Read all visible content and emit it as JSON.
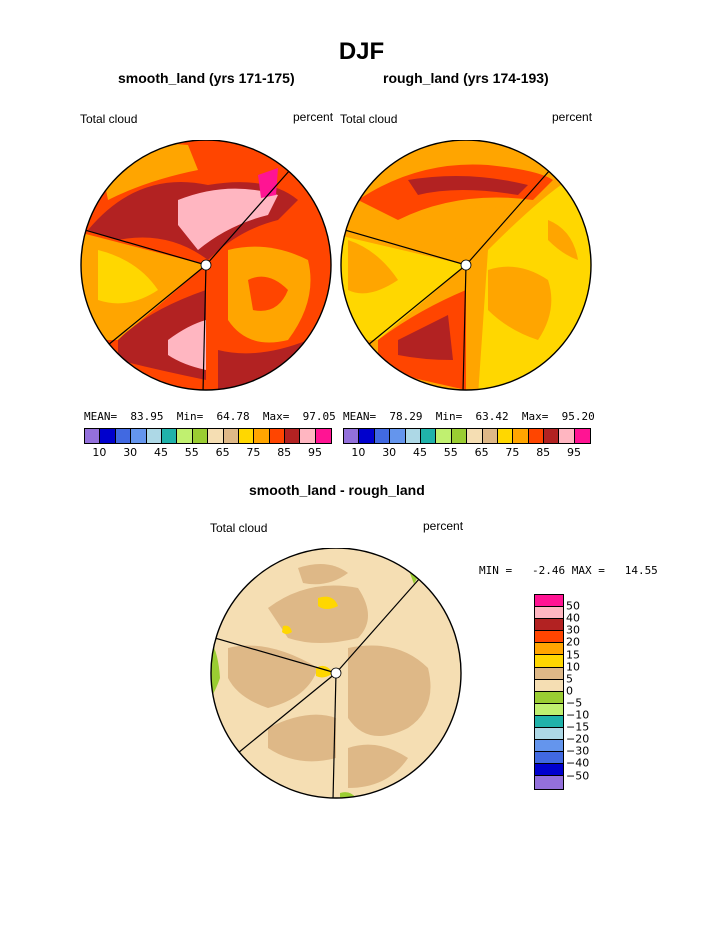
{
  "title": "DJF",
  "colors": {
    "map_colors": [
      "#9370db",
      "#0000cd",
      "#4169e1",
      "#6495ed",
      "#add8e6",
      "#20b2aa",
      "#c0f070",
      "#9acd32",
      "#f5deb3",
      "#deb887",
      "#ffd700",
      "#ffa500",
      "#ff4500",
      "#b22222",
      "#ffb6c1",
      "#ff1493"
    ],
    "diff_colors": [
      "#ff1493",
      "#ffb6c1",
      "#b22222",
      "#ff4500",
      "#ffa500",
      "#ffd700",
      "#deb887",
      "#f5deb3",
      "#9acd32",
      "#c0f070",
      "#20b2aa",
      "#add8e6",
      "#6495ed",
      "#4169e1",
      "#0000cd",
      "#9370db"
    ]
  },
  "panels": [
    {
      "title": "smooth_land (yrs 171-175)",
      "left_label": "Total cloud",
      "right_label": "percent",
      "stats": {
        "mean_label": "MEAN=",
        "mean": "83.95",
        "min_label": "Min=",
        "min": "64.78",
        "max_label": "Max=",
        "max": "97.05"
      },
      "colorbar_labels": [
        "10",
        "30",
        "45",
        "55",
        "65",
        "75",
        "85",
        "95"
      ]
    },
    {
      "title": "rough_land (yrs 174-193)",
      "left_label": "Total cloud",
      "right_label": "percent",
      "stats": {
        "mean_label": "MEAN=",
        "mean": "78.29",
        "min_label": "Min=",
        "min": "63.42",
        "max_label": "Max=",
        "max": "95.20"
      },
      "colorbar_labels": [
        "10",
        "30",
        "45",
        "55",
        "65",
        "75",
        "85",
        "95"
      ]
    },
    {
      "title": "smooth_land - rough_land",
      "left_label": "Total cloud",
      "right_label": "percent",
      "minmax": "MIN =   -2.46 MAX =   14.55",
      "colorbar_labels": [
        "50",
        "40",
        "30",
        "20",
        "15",
        "10",
        "5",
        "0",
        "−5",
        "−10",
        "−15",
        "−20",
        "−30",
        "−40",
        "−50"
      ]
    }
  ],
  "chart_data": [
    {
      "type": "heatmap",
      "title": "smooth_land (yrs 171-175)",
      "field": "Total cloud",
      "units": "percent",
      "season": "DJF",
      "projection": "polar (circular map with three sector boundaries)",
      "stats": {
        "mean": 83.95,
        "min": 64.78,
        "max": 97.05
      },
      "contour_levels": [
        10,
        30,
        45,
        55,
        65,
        75,
        85,
        95
      ],
      "dominant_ranges": [
        "75-85 (orange-red) over most of disk",
        "85-95 (dark red / pink) in upper and lower sectors",
        "65-75 (orange) in left sector"
      ]
    },
    {
      "type": "heatmap",
      "title": "rough_land (yrs 174-193)",
      "field": "Total cloud",
      "units": "percent",
      "season": "DJF",
      "projection": "polar (circular map with three sector boundaries)",
      "stats": {
        "mean": 78.29,
        "min": 63.42,
        "max": 95.2
      },
      "contour_levels": [
        10,
        30,
        45,
        55,
        65,
        75,
        85,
        95
      ],
      "dominant_ranges": [
        "65-80 (yellow/orange) over left and right sectors",
        "75-85 (orange-red) in upper and lower sectors"
      ]
    },
    {
      "type": "heatmap",
      "title": "smooth_land - rough_land",
      "field": "Total cloud",
      "units": "percent",
      "season": "DJF",
      "projection": "polar (circular map with three sector boundaries)",
      "stats": {
        "min": -2.46,
        "max": 14.55
      },
      "contour_levels": [
        -50,
        -40,
        -30,
        -20,
        -15,
        -10,
        -5,
        0,
        5,
        10,
        15,
        20,
        30,
        40,
        50
      ],
      "dominant_ranges": [
        "0-5 (wheat) background",
        "5-10 (tan) widespread patches",
        "10-15 (yellow) small patches near pole",
        "-5-0 (green) at edges"
      ]
    }
  ]
}
